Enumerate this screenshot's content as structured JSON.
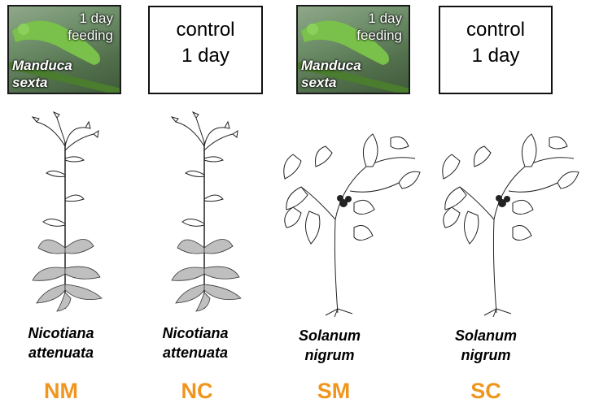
{
  "treatments": [
    {
      "type": "feeding",
      "duration": "1 day\nfeeding",
      "species": "Manduca\nsexta",
      "plant": "Nicotiana\nattenuata",
      "code": "NM"
    },
    {
      "type": "control",
      "duration": "control\n1 day",
      "plant": "Nicotiana\nattenuata",
      "code": "NC"
    },
    {
      "type": "feeding",
      "duration": "1 day\nfeeding",
      "species": "Manduca\nsexta",
      "plant": "Solanum\nnigrum",
      "code": "SM"
    },
    {
      "type": "control",
      "duration": "control\n1 day",
      "plant": "Solanum\nnigrum",
      "code": "SC"
    }
  ],
  "colors": {
    "code": "#f0961e",
    "caterpillar": "#79c14a",
    "stem": "#4a7d2e"
  }
}
